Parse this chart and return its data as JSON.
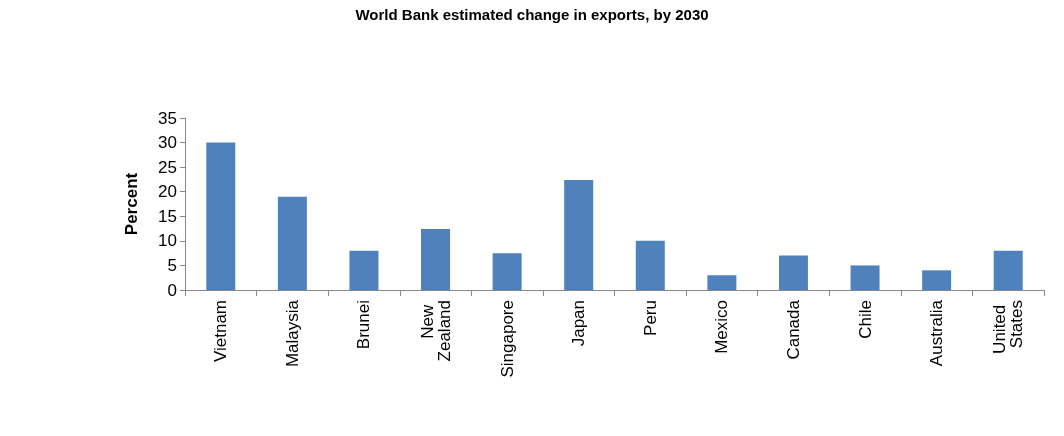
{
  "chart_data": {
    "type": "bar",
    "title": "World Bank estimated change in exports, by 2030",
    "ylabel": "Percent",
    "categories": [
      "Vietnam",
      "Malaysia",
      "Brunei",
      "New Zealand",
      "Singapore",
      "Japan",
      "Peru",
      "Mexico",
      "Canada",
      "Chile",
      "Australia",
      "United States"
    ],
    "values": [
      30,
      19,
      8,
      12.4,
      7.5,
      22.4,
      10,
      3,
      7,
      5,
      4,
      8
    ],
    "color": "#4f81bd",
    "ylim": [
      0,
      35
    ],
    "yticks": [
      0,
      5,
      10,
      15,
      20,
      25,
      30,
      35
    ],
    "grid": false
  }
}
